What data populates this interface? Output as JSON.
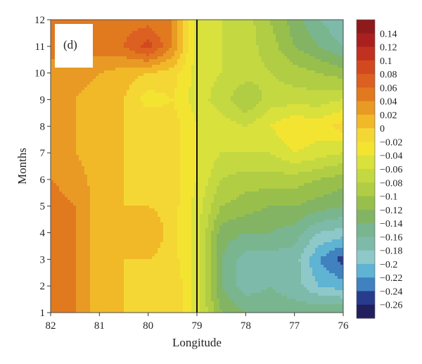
{
  "chart_data": {
    "type": "heatmap",
    "panel_label": "(d)",
    "xlabel": "Longitude",
    "ylabel": "Months",
    "x_ticks": [
      "82",
      "81",
      "80",
      "79",
      "78",
      "77",
      "76"
    ],
    "y_ticks": [
      "1",
      "2",
      "3",
      "4",
      "5",
      "6",
      "7",
      "8",
      "9",
      "10",
      "11",
      "12"
    ],
    "xlim": [
      82,
      76
    ],
    "ylim": [
      1,
      12
    ],
    "x_reference_line": 79,
    "colorbar": {
      "levels": [
        "0.14",
        "0.12",
        "0.1",
        "0.08",
        "0.06",
        "0.04",
        "0.02",
        "0",
        "−0.02",
        "−0.04",
        "−0.06",
        "−0.08",
        "−0.1",
        "−0.12",
        "−0.14",
        "−0.16",
        "−0.18",
        "−0.2",
        "−0.22",
        "−0.24",
        "−0.26"
      ],
      "colors": [
        "#8e1a1c",
        "#a9201f",
        "#c2311f",
        "#d3491f",
        "#dc6021",
        "#e1791f",
        "#e89a24",
        "#f1b928",
        "#f4d734",
        "#f4e432",
        "#d9e13c",
        "#c4d841",
        "#b0cd44",
        "#98bf4c",
        "#82b464",
        "#79b58e",
        "#7ebaa9",
        "#8ec8c9",
        "#5fb3d3",
        "#3f82bf",
        "#283c8e",
        "#221f5e"
      ]
    },
    "longitudes": [
      82,
      81.5,
      81,
      80.5,
      80,
      79.5,
      79,
      78.5,
      78,
      77.5,
      77,
      76.5,
      76
    ],
    "months": [
      1,
      2,
      3,
      4,
      5,
      6,
      7,
      8,
      9,
      10,
      11,
      12
    ],
    "values": [
      [
        0.05,
        0.04,
        0.01,
        0.0,
        0.0,
        0.0,
        -0.05,
        -0.12,
        -0.14,
        -0.15,
        -0.15,
        -0.14,
        -0.14
      ],
      [
        0.05,
        0.04,
        0.01,
        0.0,
        0.0,
        0.0,
        -0.05,
        -0.14,
        -0.17,
        -0.16,
        -0.17,
        -0.2,
        -0.21
      ],
      [
        0.05,
        0.04,
        0.01,
        0.0,
        0.0,
        -0.01,
        -0.05,
        -0.14,
        -0.17,
        -0.17,
        -0.17,
        -0.22,
        -0.25
      ],
      [
        0.05,
        0.04,
        0.01,
        0.0,
        0.02,
        -0.01,
        -0.05,
        -0.13,
        -0.14,
        -0.14,
        -0.15,
        -0.18,
        -0.19
      ],
      [
        0.05,
        0.04,
        0.01,
        0.0,
        0.0,
        -0.01,
        -0.05,
        -0.1,
        -0.11,
        -0.12,
        -0.12,
        -0.13,
        -0.14
      ],
      [
        0.04,
        0.03,
        0.01,
        0.0,
        0.0,
        -0.01,
        -0.04,
        -0.08,
        -0.09,
        -0.09,
        -0.09,
        -0.1,
        -0.11
      ],
      [
        0.03,
        0.02,
        0.01,
        0.0,
        0.0,
        -0.01,
        -0.04,
        -0.06,
        -0.06,
        -0.06,
        -0.04,
        -0.05,
        -0.06
      ],
      [
        0.02,
        0.02,
        0.01,
        0.0,
        0.0,
        -0.01,
        -0.04,
        -0.05,
        -0.06,
        -0.04,
        -0.02,
        -0.03,
        -0.01
      ],
      [
        0.03,
        0.02,
        0.01,
        0.0,
        -0.03,
        -0.02,
        -0.05,
        -0.07,
        -0.1,
        -0.07,
        -0.07,
        -0.07,
        -0.06
      ],
      [
        0.04,
        0.03,
        0.02,
        0.01,
        0.0,
        -0.01,
        -0.05,
        -0.06,
        -0.07,
        -0.08,
        -0.09,
        -0.1,
        -0.11
      ],
      [
        0.04,
        0.05,
        0.05,
        0.06,
        0.09,
        0.04,
        -0.05,
        -0.06,
        -0.07,
        -0.09,
        -0.12,
        -0.14,
        -0.16
      ],
      [
        0.05,
        0.05,
        0.05,
        0.05,
        0.05,
        0.04,
        -0.05,
        -0.06,
        -0.07,
        -0.1,
        -0.13,
        -0.16,
        -0.18
      ]
    ]
  }
}
